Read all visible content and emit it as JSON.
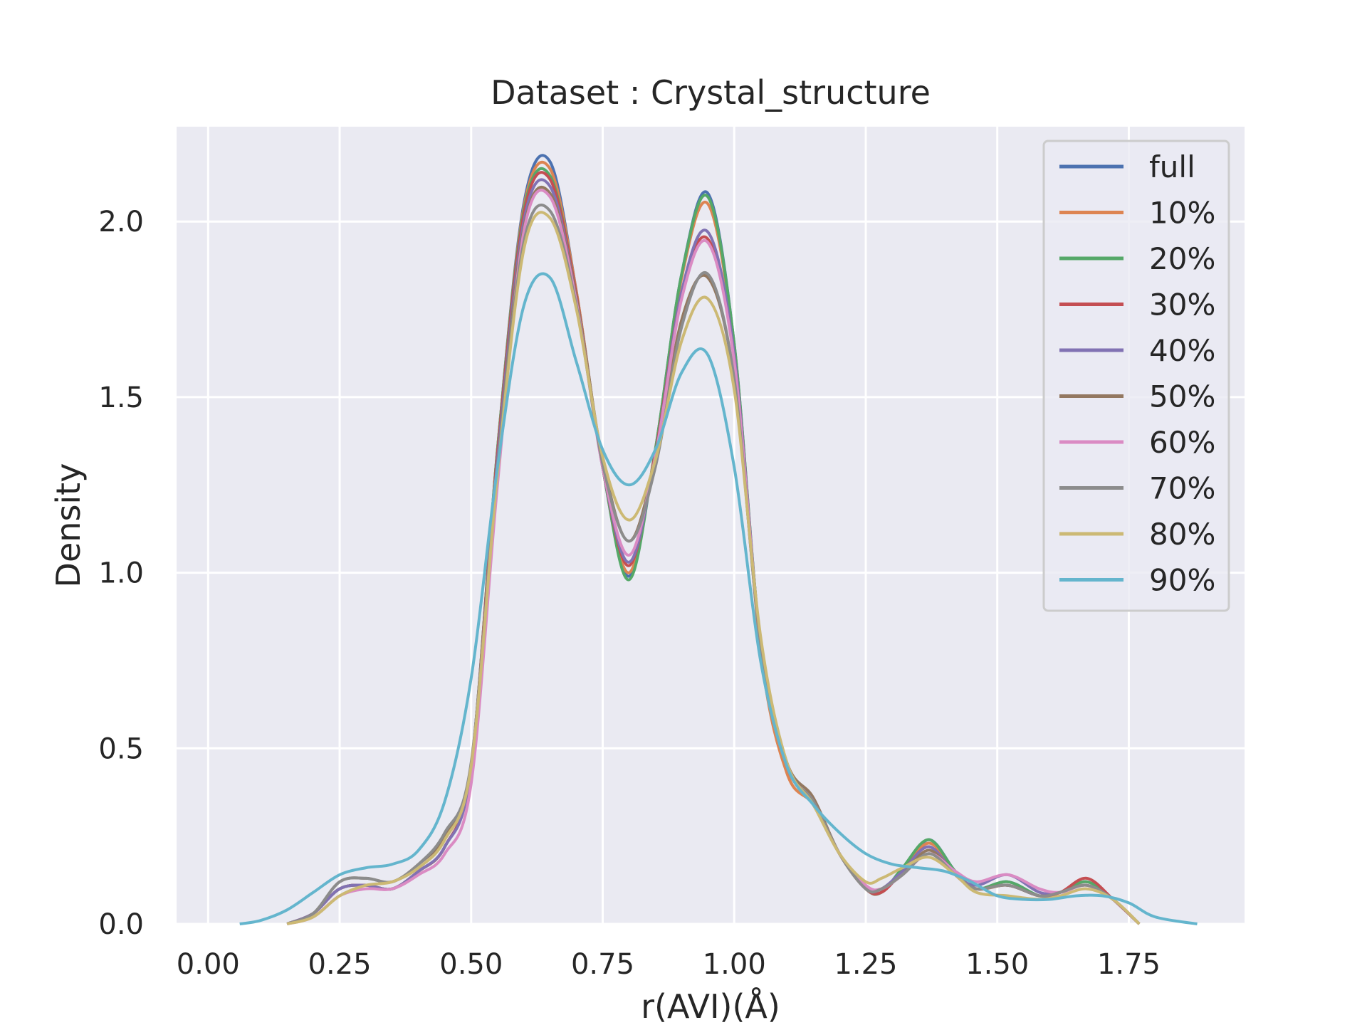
{
  "chart_data": {
    "type": "line",
    "title": "Dataset : Crystal_structure",
    "xlabel": "r(AVI)(Å)",
    "ylabel": "Density",
    "xlim": [
      -0.06,
      1.97
    ],
    "ylim": [
      0.0,
      2.27
    ],
    "xticks": [
      0.0,
      0.25,
      0.5,
      0.75,
      1.0,
      1.25,
      1.5,
      1.75
    ],
    "xtick_labels": [
      "0.00",
      "0.25",
      "0.50",
      "0.75",
      "1.00",
      "1.25",
      "1.50",
      "1.75"
    ],
    "yticks": [
      0.0,
      0.5,
      1.0,
      1.5,
      2.0
    ],
    "ytick_labels": [
      "0.0",
      "0.5",
      "1.0",
      "1.5",
      "2.0"
    ],
    "grid": true,
    "legend_position": "top-right",
    "colors": {
      "background": "#EAEAF2",
      "grid": "#FFFFFF",
      "text": "#262626"
    },
    "series": [
      {
        "name": "full",
        "color": "#4C72B0",
        "x": [
          0.15,
          0.2,
          0.25,
          0.3,
          0.35,
          0.4,
          0.45,
          0.5,
          0.55,
          0.6,
          0.65,
          0.7,
          0.75,
          0.8,
          0.85,
          0.9,
          0.95,
          1.0,
          1.05,
          1.1,
          1.15,
          1.2,
          1.25,
          1.28,
          1.32,
          1.37,
          1.42,
          1.46,
          1.52,
          1.58,
          1.62,
          1.67,
          1.72,
          1.77
        ],
        "y": [
          0.0,
          0.03,
          0.1,
          0.11,
          0.1,
          0.15,
          0.22,
          0.45,
          1.35,
          2.05,
          2.17,
          1.8,
          1.3,
          0.99,
          1.35,
          1.85,
          2.08,
          1.65,
          0.8,
          0.45,
          0.35,
          0.2,
          0.1,
          0.09,
          0.15,
          0.24,
          0.15,
          0.1,
          0.12,
          0.08,
          0.09,
          0.12,
          0.07,
          0.0
        ]
      },
      {
        "name": "10%",
        "color": "#DD8452",
        "x": [
          0.15,
          0.2,
          0.25,
          0.3,
          0.35,
          0.4,
          0.45,
          0.5,
          0.55,
          0.6,
          0.65,
          0.7,
          0.75,
          0.8,
          0.85,
          0.9,
          0.95,
          1.0,
          1.05,
          1.1,
          1.15,
          1.2,
          1.25,
          1.28,
          1.32,
          1.37,
          1.42,
          1.46,
          1.52,
          1.58,
          1.62,
          1.67,
          1.72,
          1.77
        ],
        "y": [
          0.0,
          0.03,
          0.1,
          0.11,
          0.1,
          0.15,
          0.22,
          0.45,
          1.35,
          2.04,
          2.15,
          1.8,
          1.3,
          1.0,
          1.35,
          1.84,
          2.05,
          1.64,
          0.78,
          0.43,
          0.34,
          0.2,
          0.1,
          0.09,
          0.15,
          0.23,
          0.15,
          0.1,
          0.11,
          0.08,
          0.09,
          0.12,
          0.07,
          0.0
        ]
      },
      {
        "name": "20%",
        "color": "#55A868",
        "x": [
          0.15,
          0.2,
          0.25,
          0.3,
          0.35,
          0.4,
          0.45,
          0.5,
          0.55,
          0.6,
          0.65,
          0.7,
          0.75,
          0.8,
          0.85,
          0.9,
          0.95,
          1.0,
          1.05,
          1.1,
          1.15,
          1.2,
          1.25,
          1.28,
          1.32,
          1.37,
          1.42,
          1.46,
          1.52,
          1.58,
          1.62,
          1.67,
          1.72,
          1.77
        ],
        "y": [
          0.0,
          0.03,
          0.1,
          0.11,
          0.1,
          0.15,
          0.22,
          0.45,
          1.35,
          2.03,
          2.13,
          1.79,
          1.3,
          0.98,
          1.35,
          1.85,
          2.07,
          1.65,
          0.8,
          0.45,
          0.35,
          0.2,
          0.1,
          0.09,
          0.16,
          0.24,
          0.15,
          0.1,
          0.12,
          0.08,
          0.09,
          0.12,
          0.07,
          0.0
        ]
      },
      {
        "name": "30%",
        "color": "#C44E52",
        "x": [
          0.15,
          0.2,
          0.25,
          0.3,
          0.35,
          0.4,
          0.45,
          0.5,
          0.55,
          0.6,
          0.65,
          0.7,
          0.75,
          0.8,
          0.85,
          0.9,
          0.95,
          1.0,
          1.05,
          1.1,
          1.15,
          1.2,
          1.25,
          1.28,
          1.32,
          1.37,
          1.42,
          1.46,
          1.52,
          1.58,
          1.62,
          1.67,
          1.72,
          1.77
        ],
        "y": [
          0.0,
          0.03,
          0.1,
          0.11,
          0.1,
          0.15,
          0.22,
          0.45,
          1.34,
          2.02,
          2.12,
          1.79,
          1.3,
          1.02,
          1.34,
          1.8,
          1.95,
          1.62,
          0.8,
          0.45,
          0.35,
          0.2,
          0.1,
          0.09,
          0.15,
          0.22,
          0.14,
          0.1,
          0.11,
          0.08,
          0.09,
          0.13,
          0.07,
          0.0
        ]
      },
      {
        "name": "40%",
        "color": "#8172B3",
        "x": [
          0.15,
          0.2,
          0.25,
          0.3,
          0.35,
          0.4,
          0.45,
          0.5,
          0.55,
          0.6,
          0.65,
          0.7,
          0.75,
          0.8,
          0.85,
          0.9,
          0.95,
          1.0,
          1.05,
          1.1,
          1.15,
          1.2,
          1.25,
          1.28,
          1.32,
          1.37,
          1.42,
          1.46,
          1.52,
          1.58,
          1.62,
          1.67,
          1.72,
          1.77
        ],
        "y": [
          0.0,
          0.03,
          0.1,
          0.11,
          0.1,
          0.15,
          0.22,
          0.44,
          1.32,
          2.0,
          2.1,
          1.78,
          1.3,
          1.03,
          1.33,
          1.8,
          1.97,
          1.62,
          0.8,
          0.45,
          0.35,
          0.2,
          0.1,
          0.1,
          0.15,
          0.22,
          0.14,
          0.11,
          0.14,
          0.09,
          0.09,
          0.11,
          0.07,
          0.0
        ]
      },
      {
        "name": "50%",
        "color": "#937860",
        "x": [
          0.15,
          0.2,
          0.25,
          0.3,
          0.35,
          0.4,
          0.45,
          0.5,
          0.55,
          0.6,
          0.65,
          0.7,
          0.75,
          0.8,
          0.85,
          0.9,
          0.95,
          1.0,
          1.05,
          1.1,
          1.15,
          1.2,
          1.25,
          1.28,
          1.32,
          1.37,
          1.42,
          1.46,
          1.52,
          1.58,
          1.62,
          1.67,
          1.72,
          1.77
        ],
        "y": [
          0.0,
          0.03,
          0.12,
          0.13,
          0.12,
          0.17,
          0.25,
          0.45,
          1.3,
          1.98,
          2.08,
          1.78,
          1.32,
          1.09,
          1.32,
          1.72,
          1.84,
          1.55,
          0.8,
          0.46,
          0.36,
          0.2,
          0.1,
          0.1,
          0.14,
          0.21,
          0.14,
          0.1,
          0.11,
          0.08,
          0.09,
          0.11,
          0.07,
          0.0
        ]
      },
      {
        "name": "60%",
        "color": "#DA8BC3",
        "x": [
          0.15,
          0.2,
          0.25,
          0.3,
          0.35,
          0.4,
          0.45,
          0.5,
          0.55,
          0.6,
          0.65,
          0.7,
          0.75,
          0.8,
          0.85,
          0.9,
          0.95,
          1.0,
          1.05,
          1.1,
          1.15,
          1.2,
          1.25,
          1.28,
          1.32,
          1.37,
          1.42,
          1.46,
          1.52,
          1.58,
          1.62,
          1.67,
          1.72,
          1.77
        ],
        "y": [
          0.0,
          0.02,
          0.08,
          0.1,
          0.1,
          0.14,
          0.2,
          0.4,
          1.25,
          1.97,
          2.07,
          1.77,
          1.3,
          1.05,
          1.33,
          1.78,
          1.94,
          1.6,
          0.8,
          0.45,
          0.35,
          0.2,
          0.11,
          0.1,
          0.14,
          0.2,
          0.15,
          0.12,
          0.14,
          0.1,
          0.09,
          0.11,
          0.07,
          0.0
        ]
      },
      {
        "name": "70%",
        "color": "#8C8C8C",
        "x": [
          0.15,
          0.2,
          0.25,
          0.3,
          0.35,
          0.4,
          0.45,
          0.5,
          0.55,
          0.6,
          0.65,
          0.7,
          0.75,
          0.8,
          0.85,
          0.9,
          0.95,
          1.0,
          1.05,
          1.1,
          1.15,
          1.2,
          1.25,
          1.28,
          1.32,
          1.37,
          1.42,
          1.46,
          1.52,
          1.58,
          1.62,
          1.67,
          1.72,
          1.77
        ],
        "y": [
          0.0,
          0.03,
          0.12,
          0.13,
          0.12,
          0.17,
          0.26,
          0.46,
          1.3,
          1.94,
          2.03,
          1.76,
          1.31,
          1.09,
          1.3,
          1.7,
          1.85,
          1.55,
          0.8,
          0.45,
          0.35,
          0.2,
          0.1,
          0.1,
          0.14,
          0.2,
          0.14,
          0.1,
          0.11,
          0.08,
          0.09,
          0.11,
          0.07,
          0.0
        ]
      },
      {
        "name": "80%",
        "color": "#CCB974",
        "x": [
          0.15,
          0.2,
          0.25,
          0.3,
          0.35,
          0.4,
          0.45,
          0.5,
          0.55,
          0.6,
          0.65,
          0.7,
          0.75,
          0.8,
          0.85,
          0.9,
          0.95,
          1.0,
          1.05,
          1.1,
          1.15,
          1.2,
          1.25,
          1.28,
          1.32,
          1.37,
          1.42,
          1.46,
          1.52,
          1.58,
          1.62,
          1.67,
          1.72,
          1.77
        ],
        "y": [
          0.0,
          0.02,
          0.08,
          0.11,
          0.12,
          0.16,
          0.24,
          0.45,
          1.28,
          1.92,
          2.01,
          1.75,
          1.33,
          1.15,
          1.32,
          1.66,
          1.78,
          1.52,
          0.82,
          0.46,
          0.34,
          0.2,
          0.12,
          0.13,
          0.16,
          0.19,
          0.14,
          0.09,
          0.08,
          0.07,
          0.08,
          0.1,
          0.07,
          0.0
        ]
      },
      {
        "name": "90%",
        "color": "#64B5CD",
        "x": [
          0.06,
          0.1,
          0.15,
          0.2,
          0.25,
          0.3,
          0.35,
          0.4,
          0.45,
          0.5,
          0.55,
          0.6,
          0.65,
          0.7,
          0.75,
          0.8,
          0.85,
          0.9,
          0.95,
          1.0,
          1.05,
          1.1,
          1.15,
          1.2,
          1.25,
          1.3,
          1.35,
          1.4,
          1.45,
          1.5,
          1.55,
          1.6,
          1.65,
          1.7,
          1.75,
          1.8,
          1.88
        ],
        "y": [
          0.0,
          0.01,
          0.04,
          0.09,
          0.14,
          0.16,
          0.17,
          0.21,
          0.35,
          0.7,
          1.3,
          1.76,
          1.84,
          1.6,
          1.35,
          1.25,
          1.35,
          1.57,
          1.62,
          1.3,
          0.75,
          0.45,
          0.34,
          0.26,
          0.2,
          0.17,
          0.16,
          0.15,
          0.12,
          0.08,
          0.07,
          0.07,
          0.08,
          0.08,
          0.06,
          0.02,
          0.0
        ]
      }
    ]
  }
}
